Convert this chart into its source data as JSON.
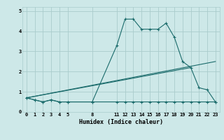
{
  "xlabel": "Humidex (Indice chaleur)",
  "ylabel": "",
  "background_color": "#cde8e8",
  "grid_color": "#aacccc",
  "line_color": "#1a6b6b",
  "x_ticks": [
    0,
    1,
    2,
    3,
    4,
    5,
    8,
    11,
    12,
    13,
    14,
    15,
    16,
    17,
    18,
    19,
    20,
    21,
    22,
    23
  ],
  "series": [
    {
      "x": [
        0,
        1,
        2,
        3,
        4,
        5,
        8,
        11,
        12,
        13,
        14,
        15,
        16,
        17,
        18,
        19,
        20,
        21,
        22,
        23
      ],
      "y": [
        0.7,
        0.6,
        0.5,
        0.6,
        0.5,
        0.5,
        0.5,
        3.3,
        4.6,
        4.6,
        4.1,
        4.1,
        4.1,
        4.4,
        3.7,
        2.5,
        2.2,
        1.2,
        1.1,
        0.5
      ]
    },
    {
      "x": [
        0,
        1,
        2,
        3,
        4,
        5,
        8,
        11,
        12,
        13,
        14,
        15,
        16,
        17,
        18,
        19,
        20,
        21,
        22,
        23
      ],
      "y": [
        0.7,
        0.6,
        0.5,
        0.6,
        0.5,
        0.5,
        0.5,
        0.5,
        0.5,
        0.5,
        0.5,
        0.5,
        0.5,
        0.5,
        0.5,
        0.5,
        0.5,
        0.5,
        0.5,
        0.5
      ]
    },
    {
      "x": [
        0,
        23
      ],
      "y": [
        0.7,
        2.5
      ]
    },
    {
      "x": [
        0,
        20
      ],
      "y": [
        0.7,
        2.2
      ]
    }
  ],
  "ylim": [
    0,
    5.2
  ],
  "xlim": [
    -0.5,
    23.5
  ],
  "yticks": [
    0,
    1,
    2,
    3,
    4,
    5
  ],
  "tick_fontsize": 5,
  "xlabel_fontsize": 6,
  "marker_size": 3
}
